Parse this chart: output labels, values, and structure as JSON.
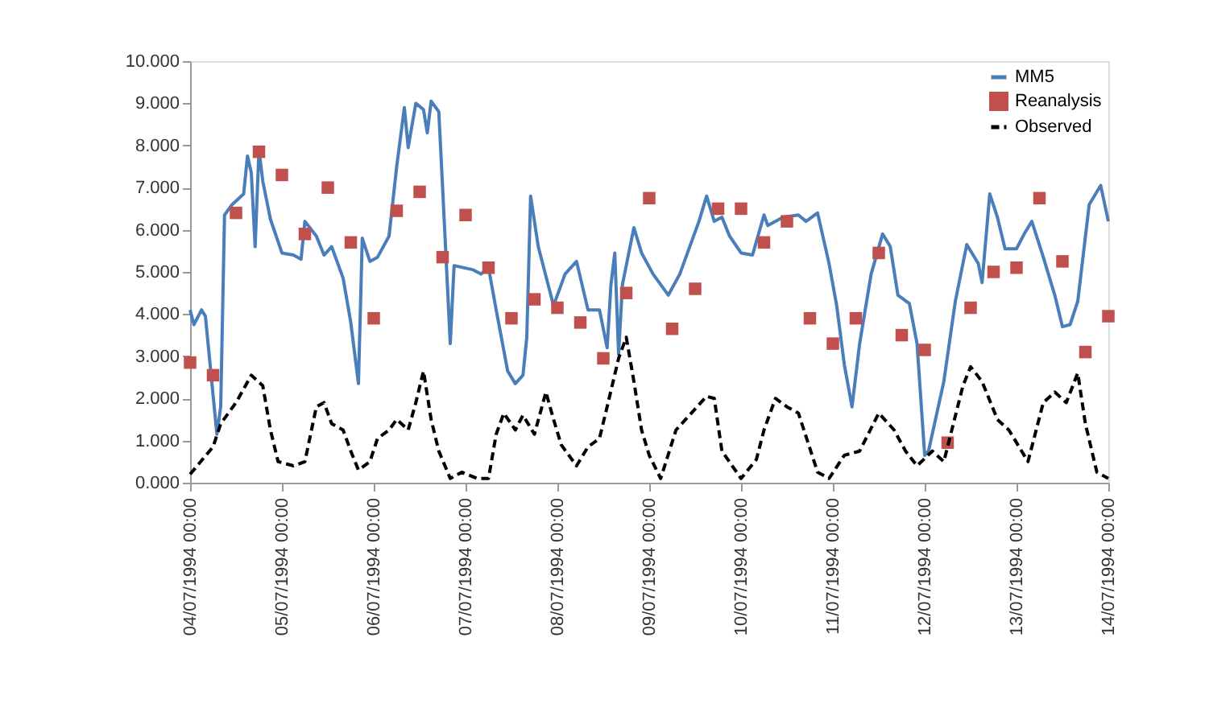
{
  "chart_data": {
    "type": "line",
    "xlim": [
      "1994-07-04T00:00",
      "1994-07-14T00:00"
    ],
    "xticks": [
      {
        "value": "1994-07-04T00:00",
        "label": "04/07/1994 00:00"
      },
      {
        "value": "1994-07-05T00:00",
        "label": "05/07/1994 00:00"
      },
      {
        "value": "1994-07-06T00:00",
        "label": "06/07/1994 00:00"
      },
      {
        "value": "1994-07-07T00:00",
        "label": "07/07/1994 00:00"
      },
      {
        "value": "1994-07-08T00:00",
        "label": "08/07/1994 00:00"
      },
      {
        "value": "1994-07-09T00:00",
        "label": "09/07/1994 00:00"
      },
      {
        "value": "1994-07-10T00:00",
        "label": "10/07/1994 00:00"
      },
      {
        "value": "1994-07-11T00:00",
        "label": "11/07/1994 00:00"
      },
      {
        "value": "1994-07-12T00:00",
        "label": "12/07/1994 00:00"
      },
      {
        "value": "1994-07-13T00:00",
        "label": "13/07/1994 00:00"
      },
      {
        "value": "1994-07-14T00:00",
        "label": "14/07/1994 00:00"
      }
    ],
    "ylim": [
      0,
      10
    ],
    "yticks": [
      {
        "value": 0,
        "label": "0.000"
      },
      {
        "value": 1,
        "label": "1.000"
      },
      {
        "value": 2,
        "label": "2.000"
      },
      {
        "value": 3,
        "label": "3.000"
      },
      {
        "value": 4,
        "label": "4.000"
      },
      {
        "value": 5,
        "label": "5.000"
      },
      {
        "value": 6,
        "label": "6.000"
      },
      {
        "value": 7,
        "label": "7.000"
      },
      {
        "value": 8,
        "label": "8.000"
      },
      {
        "value": 9,
        "label": "9.000"
      },
      {
        "value": 10,
        "label": "10.000"
      }
    ],
    "grid": false,
    "legend": "top right",
    "series": [
      {
        "name": "MM5",
        "type": "line",
        "color": "#4a7ebb",
        "line_style": "solid",
        "marker": "none",
        "x": [
          "1994-07-04T00:00",
          "1994-07-04T01:00",
          "1994-07-04T03:00",
          "1994-07-04T04:00",
          "1994-07-04T07:00",
          "1994-07-04T08:00",
          "1994-07-04T09:00",
          "1994-07-04T11:00",
          "1994-07-04T14:00",
          "1994-07-04T15:00",
          "1994-07-04T16:00",
          "1994-07-04T17:00",
          "1994-07-04T18:00",
          "1994-07-04T19:00",
          "1994-07-04T21:00",
          "1994-07-05T00:00",
          "1994-07-05T03:00",
          "1994-07-05T05:00",
          "1994-07-05T06:00",
          "1994-07-05T09:00",
          "1994-07-05T11:00",
          "1994-07-05T13:00",
          "1994-07-05T16:00",
          "1994-07-05T18:00",
          "1994-07-05T20:00",
          "1994-07-05T21:00",
          "1994-07-05T23:00",
          "1994-07-06T01:00",
          "1994-07-06T04:00",
          "1994-07-06T06:00",
          "1994-07-06T08:00",
          "1994-07-06T09:00",
          "1994-07-06T11:00",
          "1994-07-06T13:00",
          "1994-07-06T14:00",
          "1994-07-06T15:00",
          "1994-07-06T17:00",
          "1994-07-06T18:00",
          "1994-07-06T20:00",
          "1994-07-06T21:00",
          "1994-07-07T02:00",
          "1994-07-07T04:00",
          "1994-07-07T06:00",
          "1994-07-07T08:00",
          "1994-07-07T11:00",
          "1994-07-07T13:00",
          "1994-07-07T15:00",
          "1994-07-07T16:00",
          "1994-07-07T17:00",
          "1994-07-07T19:00",
          "1994-07-07T21:00",
          "1994-07-07T23:00",
          "1994-07-08T02:00",
          "1994-07-08T05:00",
          "1994-07-08T08:00",
          "1994-07-08T11:00",
          "1994-07-08T13:00",
          "1994-07-08T14:00",
          "1994-07-08T15:00",
          "1994-07-08T16:00",
          "1994-07-08T17:00",
          "1994-07-08T20:00",
          "1994-07-08T22:00",
          "1994-07-09T01:00",
          "1994-07-09T05:00",
          "1994-07-09T08:00",
          "1994-07-09T10:00",
          "1994-07-09T13:00",
          "1994-07-09T15:00",
          "1994-07-09T17:00",
          "1994-07-09T19:00",
          "1994-07-09T21:00",
          "1994-07-10T00:00",
          "1994-07-10T03:00",
          "1994-07-10T06:00",
          "1994-07-10T07:00",
          "1994-07-10T11:00",
          "1994-07-10T15:00",
          "1994-07-10T17:00",
          "1994-07-10T20:00",
          "1994-07-10T23:00",
          "1994-07-11T01:00",
          "1994-07-11T03:00",
          "1994-07-11T05:00",
          "1994-07-11T07:00",
          "1994-07-11T10:00",
          "1994-07-11T13:00",
          "1994-07-11T15:00",
          "1994-07-11T17:00",
          "1994-07-11T20:00",
          "1994-07-11T22:00",
          "1994-07-12T00:00",
          "1994-07-12T01:00",
          "1994-07-12T05:00",
          "1994-07-12T08:00",
          "1994-07-12T11:00",
          "1994-07-12T14:00",
          "1994-07-12T15:00",
          "1994-07-12T17:00",
          "1994-07-12T19:00",
          "1994-07-12T21:00",
          "1994-07-13T00:00",
          "1994-07-13T02:00",
          "1994-07-13T04:00",
          "1994-07-13T07:00",
          "1994-07-13T10:00",
          "1994-07-13T12:00",
          "1994-07-13T14:00",
          "1994-07-13T16:00",
          "1994-07-13T19:00",
          "1994-07-13T22:00",
          "1994-07-14T00:00"
        ],
        "values": [
          4.1,
          3.75,
          4.1,
          3.95,
          1.15,
          1.8,
          6.35,
          6.6,
          6.85,
          7.75,
          7.35,
          5.6,
          7.9,
          7.15,
          6.25,
          5.45,
          5.4,
          5.3,
          6.2,
          5.85,
          5.4,
          5.6,
          4.85,
          3.8,
          2.35,
          5.8,
          5.25,
          5.35,
          5.85,
          7.5,
          8.9,
          7.95,
          9.0,
          8.85,
          8.3,
          9.05,
          8.8,
          7.0,
          3.3,
          5.15,
          5.05,
          4.95,
          5.1,
          4.1,
          2.65,
          2.35,
          2.55,
          3.45,
          6.8,
          5.6,
          4.9,
          4.2,
          4.95,
          5.25,
          4.1,
          4.1,
          3.2,
          4.7,
          5.45,
          3.05,
          4.7,
          6.05,
          5.45,
          4.95,
          4.45,
          4.95,
          5.45,
          6.2,
          6.8,
          6.2,
          6.3,
          5.85,
          5.45,
          5.4,
          6.35,
          6.1,
          6.3,
          6.35,
          6.2,
          6.4,
          5.2,
          4.2,
          2.8,
          1.8,
          3.3,
          4.95,
          5.9,
          5.6,
          4.45,
          4.25,
          3.3,
          0.65,
          0.75,
          2.4,
          4.3,
          5.65,
          5.2,
          4.75,
          6.85,
          6.3,
          5.55,
          5.55,
          5.9,
          6.2,
          5.35,
          4.45,
          3.7,
          3.75,
          4.3,
          6.6,
          7.05,
          6.2
        ]
      },
      {
        "name": "Reanalysis",
        "type": "scatter",
        "color": "#c0504d",
        "marker": "square",
        "x": [
          "1994-07-04T00:00",
          "1994-07-04T06:00",
          "1994-07-04T12:00",
          "1994-07-04T18:00",
          "1994-07-05T00:00",
          "1994-07-05T06:00",
          "1994-07-05T12:00",
          "1994-07-05T18:00",
          "1994-07-06T00:00",
          "1994-07-06T06:00",
          "1994-07-06T12:00",
          "1994-07-06T18:00",
          "1994-07-07T00:00",
          "1994-07-07T06:00",
          "1994-07-07T12:00",
          "1994-07-07T18:00",
          "1994-07-08T00:00",
          "1994-07-08T06:00",
          "1994-07-08T12:00",
          "1994-07-08T18:00",
          "1994-07-09T00:00",
          "1994-07-09T06:00",
          "1994-07-09T12:00",
          "1994-07-09T18:00",
          "1994-07-10T00:00",
          "1994-07-10T06:00",
          "1994-07-10T12:00",
          "1994-07-10T18:00",
          "1994-07-11T00:00",
          "1994-07-11T06:00",
          "1994-07-11T12:00",
          "1994-07-11T18:00",
          "1994-07-12T00:00",
          "1994-07-12T06:00",
          "1994-07-12T12:00",
          "1994-07-12T18:00",
          "1994-07-13T00:00",
          "1994-07-13T06:00",
          "1994-07-13T12:00",
          "1994-07-13T18:00",
          "1994-07-14T00:00"
        ],
        "values": [
          2.85,
          2.55,
          6.4,
          7.85,
          7.3,
          5.9,
          7.0,
          5.7,
          3.9,
          6.45,
          6.9,
          5.35,
          6.35,
          5.1,
          3.9,
          4.35,
          4.15,
          3.8,
          2.95,
          4.5,
          6.75,
          3.65,
          4.6,
          6.5,
          6.5,
          5.7,
          6.2,
          3.9,
          3.3,
          3.9,
          5.45,
          3.5,
          3.15,
          0.95,
          4.15,
          5.0,
          5.1,
          6.75,
          5.25,
          3.1,
          3.95
        ]
      },
      {
        "name": "Observed",
        "type": "line",
        "color": "#000000",
        "line_style": "dashed",
        "marker": "none",
        "x": [
          "1994-07-04T00:00",
          "1994-07-04T06:00",
          "1994-07-04T08:00",
          "1994-07-04T12:00",
          "1994-07-04T16:00",
          "1994-07-04T19:00",
          "1994-07-04T21:00",
          "1994-07-04T23:00",
          "1994-07-05T03:00",
          "1994-07-05T06:00",
          "1994-07-05T09:00",
          "1994-07-05T11:00",
          "1994-07-05T13:00",
          "1994-07-05T16:00",
          "1994-07-05T18:00",
          "1994-07-05T20:00",
          "1994-07-05T23:00",
          "1994-07-06T01:00",
          "1994-07-06T04:00",
          "1994-07-06T06:00",
          "1994-07-06T09:00",
          "1994-07-06T11:00",
          "1994-07-06T13:00",
          "1994-07-06T15:00",
          "1994-07-06T17:00",
          "1994-07-06T20:00",
          "1994-07-06T23:00",
          "1994-07-07T03:00",
          "1994-07-07T06:00",
          "1994-07-07T08:00",
          "1994-07-07T10:00",
          "1994-07-07T13:00",
          "1994-07-07T15:00",
          "1994-07-07T18:00",
          "1994-07-07T21:00",
          "1994-07-07T23:00",
          "1994-07-08T01:00",
          "1994-07-08T05:00",
          "1994-07-08T08:00",
          "1994-07-08T11:00",
          "1994-07-08T13:00",
          "1994-07-08T16:00",
          "1994-07-08T18:00",
          "1994-07-08T20:00",
          "1994-07-08T22:00",
          "1994-07-09T00:00",
          "1994-07-09T03:00",
          "1994-07-09T07:00",
          "1994-07-09T11:00",
          "1994-07-09T15:00",
          "1994-07-09T17:00",
          "1994-07-09T19:00",
          "1994-07-10T00:00",
          "1994-07-10T04:00",
          "1994-07-10T06:00",
          "1994-07-10T09:00",
          "1994-07-10T12:00",
          "1994-07-10T15:00",
          "1994-07-10T20:00",
          "1994-07-10T23:00",
          "1994-07-11T03:00",
          "1994-07-11T07:00",
          "1994-07-11T12:00",
          "1994-07-11T16:00",
          "1994-07-11T19:00",
          "1994-07-11T22:00",
          "1994-07-12T02:00",
          "1994-07-12T05:00",
          "1994-07-12T10:00",
          "1994-07-12T12:00",
          "1994-07-12T15:00",
          "1994-07-12T19:00",
          "1994-07-12T22:00",
          "1994-07-13T03:00",
          "1994-07-13T07:00",
          "1994-07-13T10:00",
          "1994-07-13T13:00",
          "1994-07-13T16:00",
          "1994-07-13T18:00",
          "1994-07-13T21:00",
          "1994-07-14T00:00"
        ],
        "values": [
          0.2,
          0.85,
          1.4,
          1.9,
          2.55,
          2.3,
          1.25,
          0.5,
          0.4,
          0.5,
          1.8,
          1.9,
          1.4,
          1.25,
          0.75,
          0.3,
          0.5,
          1.05,
          1.25,
          1.5,
          1.25,
          1.9,
          2.65,
          1.5,
          0.75,
          0.1,
          0.25,
          0.1,
          0.1,
          1.15,
          1.65,
          1.25,
          1.6,
          1.15,
          2.15,
          1.5,
          0.9,
          0.4,
          0.85,
          1.05,
          1.8,
          2.95,
          3.45,
          2.4,
          1.25,
          0.65,
          0.1,
          1.25,
          1.65,
          2.05,
          2.0,
          0.75,
          0.1,
          0.55,
          1.25,
          2.0,
          1.8,
          1.65,
          0.25,
          0.1,
          0.65,
          0.75,
          1.65,
          1.25,
          0.75,
          0.4,
          0.75,
          0.5,
          2.3,
          2.75,
          2.4,
          1.5,
          1.25,
          0.5,
          1.9,
          2.15,
          1.9,
          2.6,
          1.4,
          0.25,
          0.1
        ]
      }
    ]
  }
}
